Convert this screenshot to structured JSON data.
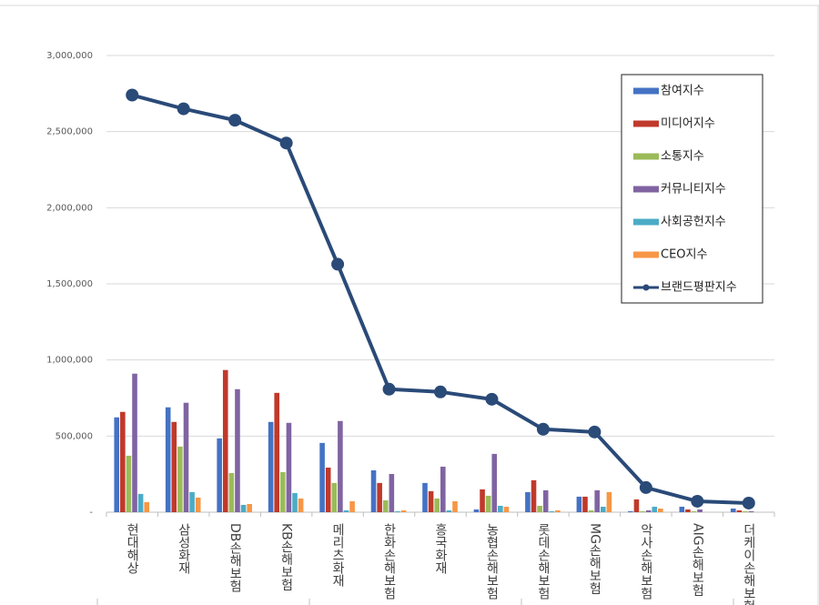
{
  "chart_data": {
    "type": "bar_line",
    "categories": [
      "현대해상",
      "삼성화재",
      "DB손해보험",
      "KB손해보험",
      "메리츠화재",
      "한화손해보험",
      "흥국화재",
      "농협손해보험",
      "롯데손해보험",
      "MG손해보험",
      "악사손해보험",
      "AIG손해보험",
      "더케이손해보험"
    ],
    "series": [
      {
        "name": "참여지수",
        "type": "bar",
        "color": "#4472c4",
        "values": [
          623000,
          689000,
          485000,
          593000,
          455000,
          275000,
          192000,
          18000,
          132000,
          102000,
          6000,
          36000,
          24000
        ]
      },
      {
        "name": "미디어지수",
        "type": "bar",
        "color": "#c0392b",
        "values": [
          659000,
          593000,
          934000,
          784000,
          293000,
          192000,
          138000,
          150000,
          210000,
          102000,
          84000,
          18000,
          12000
        ]
      },
      {
        "name": "소통지수",
        "type": "bar",
        "color": "#9bbb59",
        "values": [
          371000,
          431000,
          257000,
          263000,
          192000,
          78000,
          90000,
          108000,
          42000,
          12000,
          6000,
          6000,
          6000
        ]
      },
      {
        "name": "커뮤니티지수",
        "type": "bar",
        "color": "#8064a2",
        "values": [
          910000,
          719000,
          808000,
          587000,
          599000,
          251000,
          299000,
          383000,
          144000,
          144000,
          12000,
          18000,
          6000
        ]
      },
      {
        "name": "사회공헌지수",
        "type": "bar",
        "color": "#4bacc6",
        "values": [
          120000,
          132000,
          48000,
          126000,
          12000,
          6000,
          12000,
          42000,
          6000,
          36000,
          36000,
          0,
          0
        ]
      },
      {
        "name": "CEO지수",
        "type": "bar",
        "color": "#f79646",
        "values": [
          66000,
          96000,
          54000,
          90000,
          72000,
          12000,
          72000,
          36000,
          12000,
          132000,
          24000,
          0,
          0
        ]
      },
      {
        "name": "브랜드평판지수",
        "type": "line",
        "color": "#2a4a78",
        "values": [
          2740000,
          2650000,
          2575000,
          2425000,
          1629000,
          808000,
          790000,
          742000,
          545000,
          527000,
          162000,
          72000,
          60000
        ]
      }
    ],
    "ylim": [
      0,
      3000000
    ],
    "yticks": [
      {
        "value": 0,
        "label": "-"
      },
      {
        "value": 500000,
        "label": "500,000"
      },
      {
        "value": 1000000,
        "label": "1,000,000"
      },
      {
        "value": 1500000,
        "label": "1,500,000"
      },
      {
        "value": 2000000,
        "label": "2,000,000"
      },
      {
        "value": 2500000,
        "label": "2,500,000"
      },
      {
        "value": 3000000,
        "label": "3,000,000"
      }
    ],
    "grid": true,
    "legend": "top-right"
  }
}
